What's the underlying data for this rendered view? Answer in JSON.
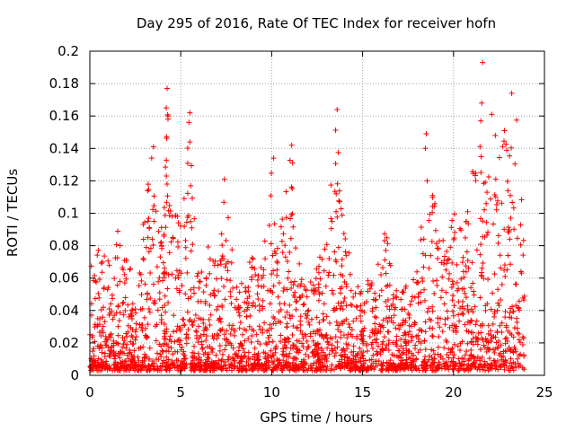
{
  "chart_data": {
    "type": "scatter",
    "title": "Day 295 of 2016, Rate Of TEC Index for receiver hofn",
    "xlabel": "GPS time / hours",
    "ylabel": "ROTI / TECUs",
    "xlim": [
      0,
      25
    ],
    "ylim": [
      0,
      0.2
    ],
    "x_ticks": [
      0,
      5,
      10,
      15,
      20,
      25
    ],
    "x_tick_labels": [
      "0",
      "5",
      "10",
      "15",
      "20",
      "25"
    ],
    "y_ticks": [
      0,
      0.02,
      0.04,
      0.06,
      0.08,
      0.1,
      0.12,
      0.14,
      0.16,
      0.18,
      0.2
    ],
    "y_tick_labels": [
      "0",
      "0.02",
      "0.04",
      "0.06",
      "0.08",
      "0.1",
      "0.12",
      "0.14",
      "0.16",
      "0.18",
      "0.2"
    ],
    "grid": true,
    "marker": "+",
    "marker_color": "#ff0000",
    "grid_color": "#a0a0a0",
    "data_time_range": [
      0,
      23.9
    ],
    "envelope": {
      "x": [
        0,
        0.5,
        1.0,
        1.5,
        2.0,
        2.5,
        3.0,
        3.3,
        3.5,
        4.0,
        4.3,
        4.6,
        5.0,
        5.5,
        6.0,
        6.5,
        7.0,
        7.4,
        8.0,
        8.5,
        9.0,
        9.5,
        10.0,
        10.5,
        11.0,
        11.5,
        12.0,
        12.5,
        13.0,
        13.5,
        14.0,
        14.5,
        15.0,
        15.5,
        16.0,
        16.5,
        17.0,
        17.5,
        18.0,
        18.5,
        19.0,
        19.5,
        20.0,
        20.5,
        21.0,
        21.5,
        22.0,
        22.5,
        23.0,
        23.5,
        23.9
      ],
      "max": [
        0.07,
        0.08,
        0.075,
        0.09,
        0.075,
        0.06,
        0.11,
        0.13,
        0.14,
        0.09,
        0.17,
        0.1,
        0.1,
        0.16,
        0.07,
        0.08,
        0.09,
        0.12,
        0.07,
        0.06,
        0.08,
        0.07,
        0.13,
        0.09,
        0.14,
        0.07,
        0.06,
        0.07,
        0.09,
        0.16,
        0.09,
        0.06,
        0.05,
        0.08,
        0.1,
        0.08,
        0.05,
        0.06,
        0.07,
        0.12,
        0.11,
        0.08,
        0.1,
        0.09,
        0.13,
        0.19,
        0.12,
        0.16,
        0.14,
        0.17,
        0.1
      ]
    },
    "outliers": [
      [
        3.4,
        0.134
      ],
      [
        3.5,
        0.141
      ],
      [
        4.25,
        0.177
      ],
      [
        4.2,
        0.165
      ],
      [
        4.3,
        0.16
      ],
      [
        5.5,
        0.162
      ],
      [
        5.45,
        0.156
      ],
      [
        5.5,
        0.144
      ],
      [
        7.4,
        0.121
      ],
      [
        10.1,
        0.134
      ],
      [
        11.1,
        0.142
      ],
      [
        11.15,
        0.131
      ],
      [
        13.6,
        0.164
      ],
      [
        13.55,
        0.112
      ],
      [
        18.5,
        0.149
      ],
      [
        18.45,
        0.14
      ],
      [
        18.55,
        0.12
      ],
      [
        21.6,
        0.193
      ],
      [
        21.55,
        0.168
      ],
      [
        21.5,
        0.157
      ],
      [
        22.1,
        0.161
      ],
      [
        22.3,
        0.148
      ],
      [
        23.2,
        0.174
      ],
      [
        22.8,
        0.151
      ]
    ],
    "n_points": 2600,
    "seed": 295
  }
}
